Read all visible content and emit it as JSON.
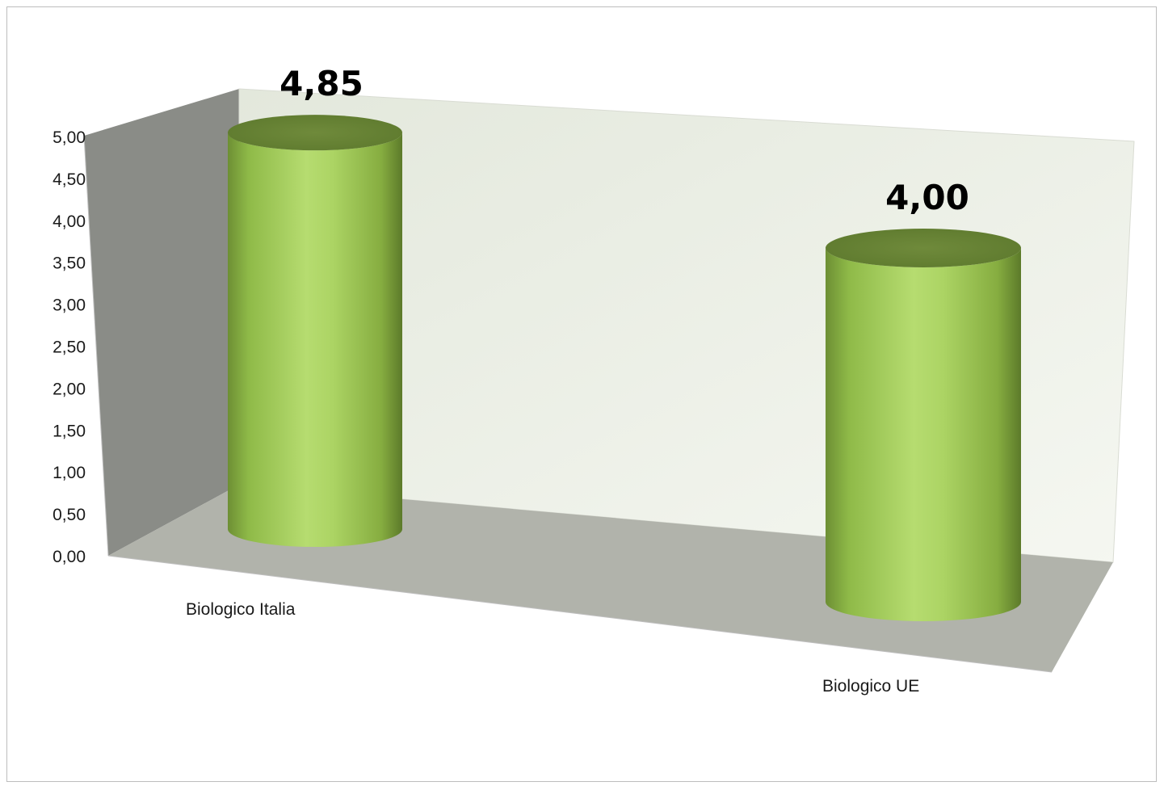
{
  "chart_data": {
    "type": "bar",
    "style": "3d-cylinder",
    "categories": [
      "Biologico Italia",
      "Biologico UE"
    ],
    "values": [
      4.85,
      4.0
    ],
    "data_labels": [
      "4,85",
      "4,00"
    ],
    "title": "",
    "xlabel": "",
    "ylabel": "",
    "ylim": [
      0,
      5
    ],
    "yticks": [
      0,
      0.5,
      1,
      1.5,
      2,
      2.5,
      3,
      3.5,
      4,
      4.5,
      5
    ],
    "ytick_labels": [
      "0,00",
      "0,50",
      "1,00",
      "1,50",
      "2,00",
      "2,50",
      "3,00",
      "3,50",
      "4,00",
      "4,50",
      "5,00"
    ],
    "grid": false,
    "legend": "none",
    "colors": {
      "bar_light": "#b4d96c",
      "bar_mid": "#92c04a",
      "bar_dark": "#5c7f28",
      "bar_top": "#6f8b3c",
      "back_wall": "#eff2ea",
      "side_wall": "#8a8c87",
      "floor": "#b1b3ab"
    }
  }
}
